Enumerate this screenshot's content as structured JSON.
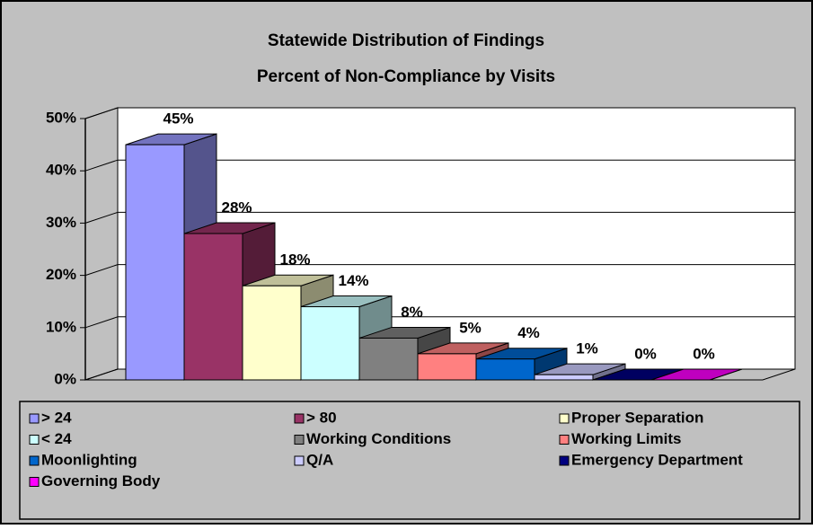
{
  "chart_data": {
    "type": "bar3d",
    "title": "Statewide Distribution of Findings",
    "subtitle": "Percent of Non-Compliance by Visits",
    "series": [
      {
        "name": "> 24",
        "color": "#9999ff",
        "values": [
          45
        ],
        "value_labels": [
          "45%"
        ]
      },
      {
        "name": "> 80",
        "color": "#993366",
        "values": [
          28
        ],
        "value_labels": [
          "28%"
        ]
      },
      {
        "name": "Proper Separation",
        "color": "#ffffcc",
        "values": [
          18
        ],
        "value_labels": [
          "18%"
        ]
      },
      {
        "name": "< 24",
        "color": "#ccffff",
        "values": [
          14
        ],
        "value_labels": [
          "14%"
        ]
      },
      {
        "name": "Working Conditions",
        "color": "#808080",
        "values": [
          8
        ],
        "value_labels": [
          "8%"
        ]
      },
      {
        "name": "Working Limits",
        "color": "#ff8080",
        "values": [
          5
        ],
        "value_labels": [
          "5%"
        ]
      },
      {
        "name": "Moonlighting",
        "color": "#0066cc",
        "values": [
          4
        ],
        "value_labels": [
          "4%"
        ]
      },
      {
        "name": "Q/A",
        "color": "#ccccff",
        "values": [
          1
        ],
        "value_labels": [
          "1%"
        ]
      },
      {
        "name": "Emergency Department",
        "color": "#000080",
        "values": [
          0
        ],
        "value_labels": [
          "0%"
        ]
      },
      {
        "name": "Governing Body",
        "color": "#ff00ff",
        "values": [
          0
        ],
        "value_labels": [
          "0%"
        ]
      }
    ],
    "ylim": [
      0,
      50
    ],
    "yticks": [
      {
        "value": 0,
        "label": "0%"
      },
      {
        "value": 10,
        "label": "10%"
      },
      {
        "value": 20,
        "label": "20%"
      },
      {
        "value": 30,
        "label": "30%"
      },
      {
        "value": 40,
        "label": "40%"
      },
      {
        "value": 50,
        "label": "50%"
      }
    ],
    "grid": true,
    "legend": "bottom"
  }
}
